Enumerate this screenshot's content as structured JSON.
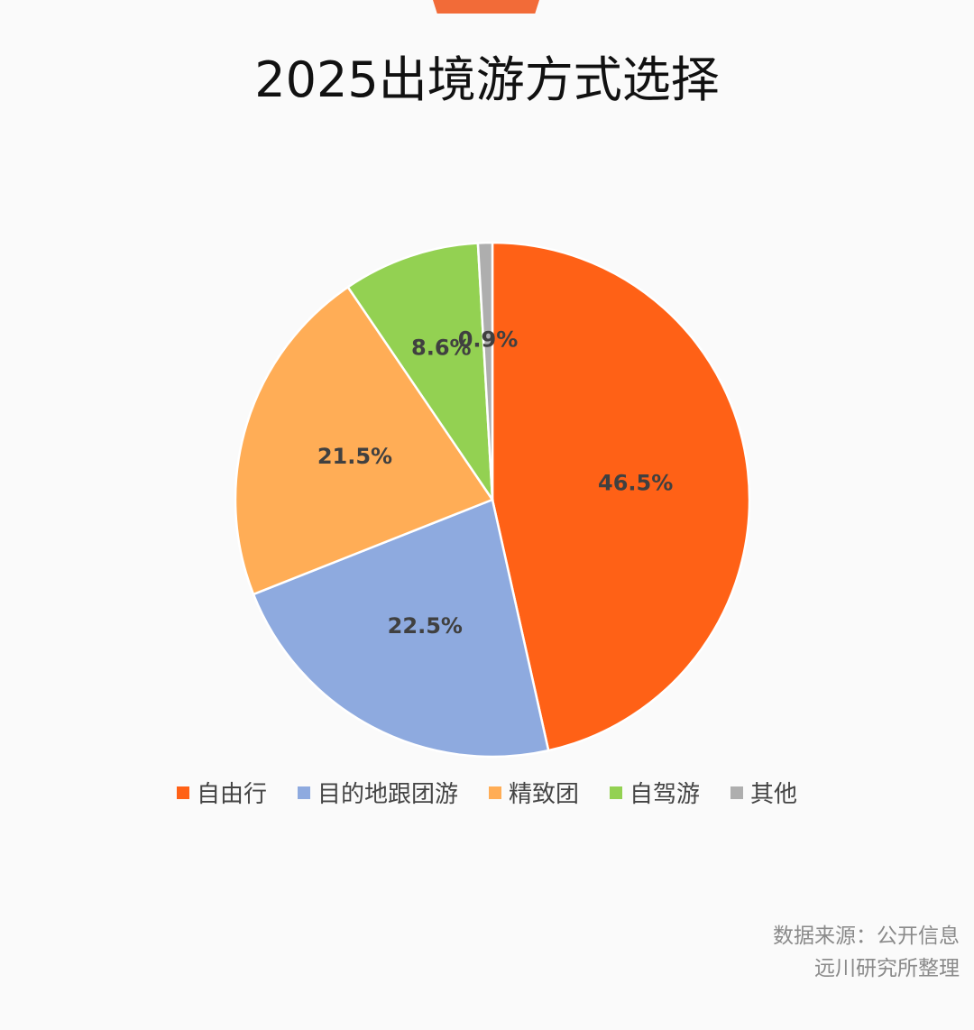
{
  "chart_data": {
    "type": "pie",
    "title": "2025出境游方式选择",
    "categories": [
      "自由行",
      "目的地跟团游",
      "精致团",
      "自驾游",
      "其他"
    ],
    "values": [
      46.5,
      22.5,
      21.5,
      8.6,
      0.9
    ],
    "data_labels": [
      "46.5%",
      "22.5%",
      "21.5%",
      "8.6%",
      "0.9%"
    ],
    "colors": [
      "#ff6116",
      "#8eaadf",
      "#ffad56",
      "#93d152",
      "#aeaeae"
    ],
    "legend_position": "bottom",
    "start_angle": "12 o'clock, clockwise"
  },
  "source": {
    "line1": "数据来源：公开信息",
    "line2": "远川研究所整理"
  }
}
